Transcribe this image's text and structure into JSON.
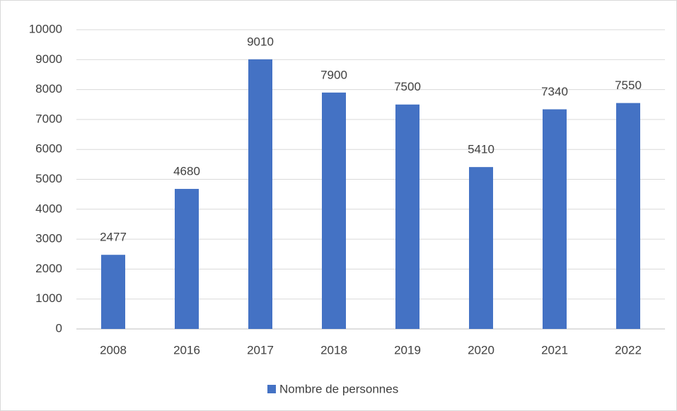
{
  "chart_data": {
    "type": "bar",
    "categories": [
      "2008",
      "2016",
      "2017",
      "2018",
      "2019",
      "2020",
      "2021",
      "2022"
    ],
    "series": [
      {
        "name": "Nombre de personnes",
        "color": "#4472c4",
        "values": [
          2477,
          4680,
          9010,
          7900,
          7500,
          5410,
          7340,
          7550
        ]
      }
    ],
    "ylim": [
      0,
      10000
    ],
    "yticks": [
      0,
      1000,
      2000,
      3000,
      4000,
      5000,
      6000,
      7000,
      8000,
      9000,
      10000
    ],
    "grid": true,
    "legend": "bottom"
  }
}
